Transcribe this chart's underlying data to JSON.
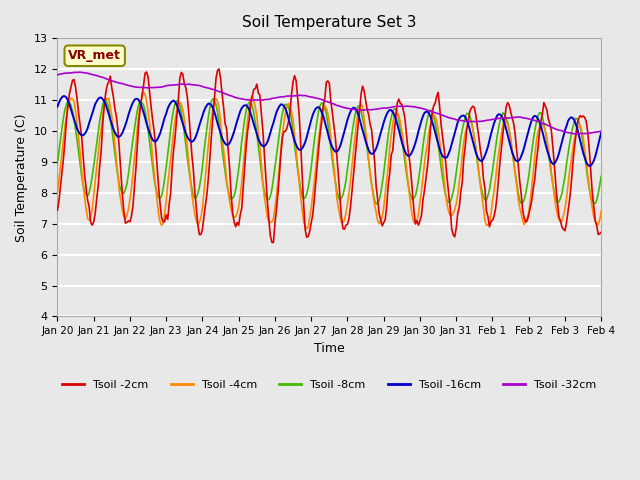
{
  "title": "Soil Temperature Set 3",
  "xlabel": "Time",
  "ylabel": "Soil Temperature (C)",
  "ylim": [
    4.0,
    13.0
  ],
  "yticks": [
    4.0,
    5.0,
    6.0,
    7.0,
    8.0,
    9.0,
    10.0,
    11.0,
    12.0,
    13.0
  ],
  "bg_color": "#e8e8e8",
  "plot_bg_color": "#e8e8e8",
  "grid_color": "#ffffff",
  "line_colors": {
    "2cm": "#dd0000",
    "4cm": "#ff8800",
    "8cm": "#44bb00",
    "16cm": "#0000cc",
    "32cm": "#aa00cc"
  },
  "legend_labels": [
    "Tsoil -2cm",
    "Tsoil -4cm",
    "Tsoil -8cm",
    "Tsoil -16cm",
    "Tsoil -32cm"
  ],
  "vr_label": "VR_met",
  "xtick_labels": [
    "Jan 20",
    "Jan 21",
    "Jan 22",
    "Jan 23",
    "Jan 24",
    "Jan 25",
    "Jan 26",
    "Jan 27",
    "Jan 28",
    "Jan 29",
    "Jan 30",
    "Jan 31",
    "Feb 1",
    "Feb 2",
    "Feb 3",
    "Feb 4"
  ],
  "xlim": [
    0,
    15
  ]
}
